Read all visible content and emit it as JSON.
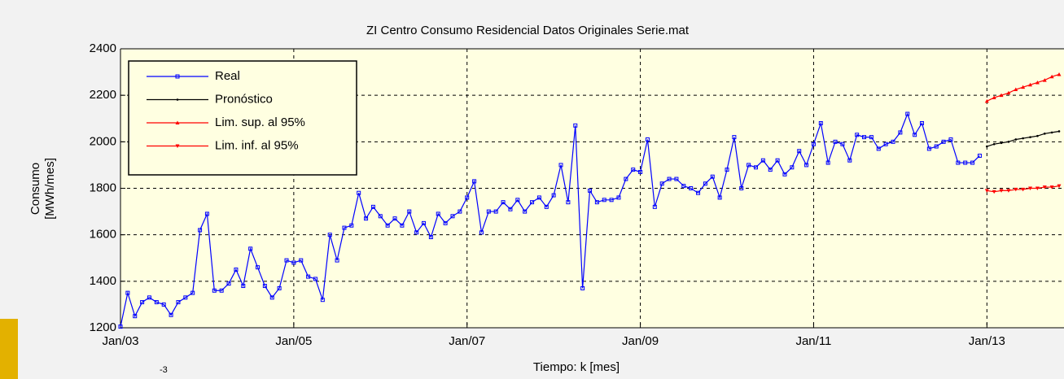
{
  "chart_data": {
    "type": "line",
    "title": "ZI Centro Consumo Residencial Datos Originales Serie.mat",
    "ylabel": [
      "Consumo",
      "[MWh/mes]"
    ],
    "xlabel": "Tiempo: k [mes]",
    "annotation": "-3",
    "x": [
      "Jan/03",
      "Feb/03",
      "Mar/03",
      "Apr/03",
      "May/03",
      "Jun/03",
      "Jul/03",
      "Aug/03",
      "Sep/03",
      "Oct/03",
      "Nov/03",
      "Dec/03",
      "Jan/04",
      "Feb/04",
      "Mar/04",
      "Apr/04",
      "May/04",
      "Jun/04",
      "Jul/04",
      "Aug/04",
      "Sep/04",
      "Oct/04",
      "Nov/04",
      "Dec/04",
      "Jan/05",
      "Feb/05",
      "Mar/05",
      "Apr/05",
      "May/05",
      "Jun/05",
      "Jul/05",
      "Aug/05",
      "Sep/05",
      "Oct/05",
      "Nov/05",
      "Dec/05",
      "Jan/06",
      "Feb/06",
      "Mar/06",
      "Apr/06",
      "May/06",
      "Jun/06",
      "Jul/06",
      "Aug/06",
      "Sep/06",
      "Oct/06",
      "Nov/06",
      "Dec/06",
      "Jan/07",
      "Feb/07",
      "Mar/07",
      "Apr/07",
      "May/07",
      "Jun/07",
      "Jul/07",
      "Aug/07",
      "Sep/07",
      "Oct/07",
      "Nov/07",
      "Dec/07",
      "Jan/08",
      "Feb/08",
      "Mar/08",
      "Apr/08",
      "May/08",
      "Jun/08",
      "Jul/08",
      "Aug/08",
      "Sep/08",
      "Oct/08",
      "Nov/08",
      "Dec/08",
      "Jan/09",
      "Feb/09",
      "Mar/09",
      "Apr/09",
      "May/09",
      "Jun/09",
      "Jul/09",
      "Aug/09",
      "Sep/09",
      "Oct/09",
      "Nov/09",
      "Dec/09",
      "Jan/10",
      "Feb/10",
      "Mar/10",
      "Apr/10",
      "May/10",
      "Jun/10",
      "Jul/10",
      "Aug/10",
      "Sep/10",
      "Oct/10",
      "Nov/10",
      "Dec/10",
      "Jan/11",
      "Feb/11",
      "Mar/11",
      "Apr/11",
      "May/11",
      "Jun/11",
      "Jul/11",
      "Aug/11",
      "Sep/11",
      "Oct/11",
      "Nov/11",
      "Dec/11",
      "Jan/12",
      "Feb/12",
      "Mar/12",
      "Apr/12",
      "May/12",
      "Jun/12",
      "Jul/12",
      "Aug/12",
      "Sep/12",
      "Oct/12",
      "Nov/12",
      "Dec/12",
      "Jan/13",
      "Feb/13",
      "Mar/13",
      "Apr/13",
      "May/13",
      "Jun/13",
      "Jul/13",
      "Aug/13",
      "Sep/13",
      "Oct/13",
      "Nov/13"
    ],
    "series": [
      {
        "name": "Real",
        "color": "#0000ff",
        "marker": "square",
        "values": [
          1205,
          1350,
          1250,
          1310,
          1330,
          1310,
          1300,
          1255,
          1310,
          1330,
          1350,
          1620,
          1690,
          1360,
          1360,
          1390,
          1450,
          1380,
          1540,
          1460,
          1380,
          1330,
          1370,
          1490,
          1480,
          1490,
          1420,
          1410,
          1320,
          1600,
          1490,
          1630,
          1640,
          1780,
          1670,
          1720,
          1680,
          1640,
          1670,
          1640,
          1700,
          1610,
          1650,
          1590,
          1690,
          1650,
          1680,
          1700,
          1760,
          1830,
          1610,
          1700,
          1700,
          1740,
          1710,
          1750,
          1700,
          1740,
          1760,
          1720,
          1770,
          1900,
          1740,
          2070,
          1370,
          1790,
          1740,
          1750,
          1750,
          1760,
          1840,
          1880,
          1870,
          2010,
          1720,
          1820,
          1840,
          1840,
          1810,
          1800,
          1780,
          1820,
          1850,
          1760,
          1880,
          2020,
          1800,
          1900,
          1890,
          1920,
          1880,
          1920,
          1860,
          1890,
          1960,
          1900,
          1990,
          2080,
          1910,
          2000,
          1990,
          1920,
          2030,
          2020,
          2020,
          1970,
          1990,
          2000,
          2040,
          2120,
          2030,
          2080,
          1970,
          1980,
          2000,
          2010,
          1910,
          1910,
          1910,
          1940,
          null,
          null,
          null,
          null,
          null,
          null,
          null,
          null,
          null,
          null,
          null
        ]
      },
      {
        "name": "Pronóstico",
        "color": "#000000",
        "marker": "dot",
        "values": [
          null,
          null,
          null,
          null,
          null,
          null,
          null,
          null,
          null,
          null,
          null,
          null,
          null,
          null,
          null,
          null,
          null,
          null,
          null,
          null,
          null,
          null,
          null,
          null,
          null,
          null,
          null,
          null,
          null,
          null,
          null,
          null,
          null,
          null,
          null,
          null,
          null,
          null,
          null,
          null,
          null,
          null,
          null,
          null,
          null,
          null,
          null,
          null,
          null,
          null,
          null,
          null,
          null,
          null,
          null,
          null,
          null,
          null,
          null,
          null,
          null,
          null,
          null,
          null,
          null,
          null,
          null,
          null,
          null,
          null,
          null,
          null,
          null,
          null,
          null,
          null,
          null,
          null,
          null,
          null,
          null,
          null,
          null,
          null,
          null,
          null,
          null,
          null,
          null,
          null,
          null,
          null,
          null,
          null,
          null,
          null,
          null,
          null,
          null,
          null,
          null,
          null,
          null,
          null,
          null,
          null,
          null,
          null,
          null,
          null,
          null,
          null,
          null,
          null,
          null,
          null,
          null,
          null,
          null,
          null,
          1980,
          1990,
          1995,
          2000,
          2010,
          2015,
          2020,
          2025,
          2035,
          2040,
          2045
        ]
      },
      {
        "name": "Lim. sup. al 95%",
        "color": "#ff0000",
        "marker": "triangle",
        "values": [
          null,
          null,
          null,
          null,
          null,
          null,
          null,
          null,
          null,
          null,
          null,
          null,
          null,
          null,
          null,
          null,
          null,
          null,
          null,
          null,
          null,
          null,
          null,
          null,
          null,
          null,
          null,
          null,
          null,
          null,
          null,
          null,
          null,
          null,
          null,
          null,
          null,
          null,
          null,
          null,
          null,
          null,
          null,
          null,
          null,
          null,
          null,
          null,
          null,
          null,
          null,
          null,
          null,
          null,
          null,
          null,
          null,
          null,
          null,
          null,
          null,
          null,
          null,
          null,
          null,
          null,
          null,
          null,
          null,
          null,
          null,
          null,
          null,
          null,
          null,
          null,
          null,
          null,
          null,
          null,
          null,
          null,
          null,
          null,
          null,
          null,
          null,
          null,
          null,
          null,
          null,
          null,
          null,
          null,
          null,
          null,
          null,
          null,
          null,
          null,
          null,
          null,
          null,
          null,
          null,
          null,
          null,
          null,
          null,
          null,
          null,
          null,
          null,
          null,
          null,
          null,
          null,
          null,
          null,
          null,
          2175,
          2190,
          2200,
          2210,
          2225,
          2235,
          2245,
          2255,
          2265,
          2280,
          2290
        ]
      },
      {
        "name": "Lim. inf. al 95%",
        "color": "#ff0000",
        "marker": "triangle-down",
        "values": [
          null,
          null,
          null,
          null,
          null,
          null,
          null,
          null,
          null,
          null,
          null,
          null,
          null,
          null,
          null,
          null,
          null,
          null,
          null,
          null,
          null,
          null,
          null,
          null,
          null,
          null,
          null,
          null,
          null,
          null,
          null,
          null,
          null,
          null,
          null,
          null,
          null,
          null,
          null,
          null,
          null,
          null,
          null,
          null,
          null,
          null,
          null,
          null,
          null,
          null,
          null,
          null,
          null,
          null,
          null,
          null,
          null,
          null,
          null,
          null,
          null,
          null,
          null,
          null,
          null,
          null,
          null,
          null,
          null,
          null,
          null,
          null,
          null,
          null,
          null,
          null,
          null,
          null,
          null,
          null,
          null,
          null,
          null,
          null,
          null,
          null,
          null,
          null,
          null,
          null,
          null,
          null,
          null,
          null,
          null,
          null,
          null,
          null,
          null,
          null,
          null,
          null,
          null,
          null,
          null,
          null,
          null,
          null,
          null,
          null,
          null,
          null,
          null,
          null,
          null,
          null,
          null,
          null,
          null,
          null,
          1790,
          1785,
          1790,
          1790,
          1795,
          1795,
          1800,
          1800,
          1805,
          1805,
          1810
        ]
      }
    ],
    "xlim": [
      "Jan/03",
      "Nov/13"
    ],
    "xticks": [
      "Jan/03",
      "Jan/05",
      "Jan/07",
      "Jan/09",
      "Jan/11",
      "Jan/13"
    ],
    "ylim": [
      1200,
      2400
    ],
    "yticks": [
      1200,
      1400,
      1600,
      1800,
      2000,
      2200,
      2400
    ],
    "grid": true,
    "legend": "upper left",
    "plot_background": "#ffffe1"
  }
}
